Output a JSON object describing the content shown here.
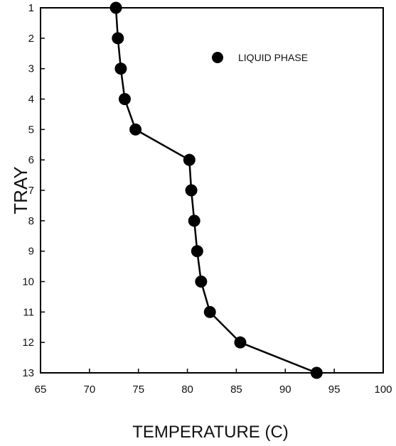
{
  "chart_data": {
    "type": "line",
    "xlabel": "TEMPERATURE (C)",
    "ylabel": "TRAY",
    "xlim": [
      65,
      100
    ],
    "ylim": [
      1,
      13
    ],
    "y_inverted": true,
    "x_ticks": [
      "65",
      "70",
      "75",
      "80",
      "85",
      "90",
      "95",
      "100"
    ],
    "y_ticks": [
      "1",
      "2",
      "3",
      "4",
      "5",
      "6",
      "7",
      "8",
      "9",
      "10",
      "11",
      "12",
      "13"
    ],
    "grid": false,
    "legend_position": "top-right",
    "series": [
      {
        "name": "LIQUID PHASE",
        "marker": "circle",
        "color": "#000000",
        "points": [
          {
            "x": 72.7,
            "y": 1
          },
          {
            "x": 72.9,
            "y": 2
          },
          {
            "x": 73.2,
            "y": 3
          },
          {
            "x": 73.6,
            "y": 4
          },
          {
            "x": 74.7,
            "y": 5
          },
          {
            "x": 80.2,
            "y": 6
          },
          {
            "x": 80.4,
            "y": 7
          },
          {
            "x": 80.7,
            "y": 8
          },
          {
            "x": 81.0,
            "y": 9
          },
          {
            "x": 81.4,
            "y": 10
          },
          {
            "x": 82.3,
            "y": 11
          },
          {
            "x": 85.4,
            "y": 12
          },
          {
            "x": 93.2,
            "y": 13
          }
        ]
      }
    ]
  }
}
